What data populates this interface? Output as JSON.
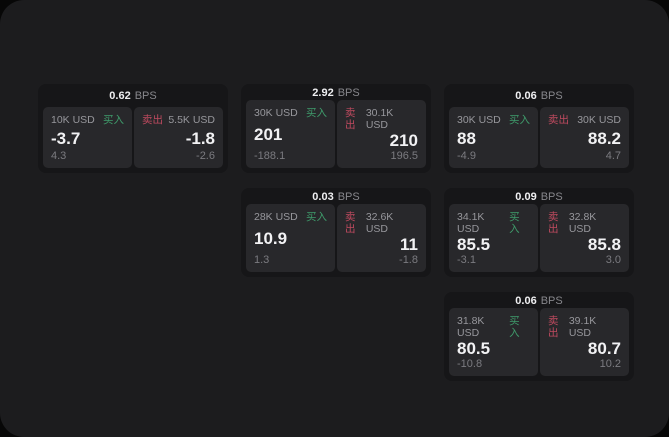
{
  "labels": {
    "bps": "BPS",
    "buy": "买入",
    "sell": "卖出"
  },
  "colors": {
    "background": "#070707",
    "window": "#1c1c1e",
    "card": "#161618",
    "pane": "#28282b",
    "buy_green": "#3f9b6b",
    "sell_red": "#bf4a5f"
  },
  "cards": [
    {
      "bps": "0.62",
      "buy": {
        "amount": "10K USD",
        "price": "-3.7",
        "delta": "4.3"
      },
      "sell": {
        "amount": "5.5K USD",
        "price": "-1.8",
        "delta": "-2.6"
      }
    },
    {
      "bps": "2.92",
      "buy": {
        "amount": "30K USD",
        "price": "201",
        "delta": "-188.1"
      },
      "sell": {
        "amount": "30.1K USD",
        "price": "210",
        "delta": "196.5"
      }
    },
    {
      "bps": "0.06",
      "buy": {
        "amount": "30K USD",
        "price": "88",
        "delta": "-4.9"
      },
      "sell": {
        "amount": "30K USD",
        "price": "88.2",
        "delta": "4.7"
      }
    },
    {
      "bps": "0.03",
      "buy": {
        "amount": "28K USD",
        "price": "10.9",
        "delta": "1.3"
      },
      "sell": {
        "amount": "32.6K USD",
        "price": "11",
        "delta": "-1.8"
      }
    },
    {
      "bps": "0.09",
      "buy": {
        "amount": "34.1K USD",
        "price": "85.5",
        "delta": "-3.1"
      },
      "sell": {
        "amount": "32.8K USD",
        "price": "85.8",
        "delta": "3.0"
      }
    },
    {
      "bps": "0.06",
      "buy": {
        "amount": "31.8K USD",
        "price": "80.5",
        "delta": "-10.8"
      },
      "sell": {
        "amount": "39.1K USD",
        "price": "80.7",
        "delta": "10.2"
      }
    }
  ]
}
